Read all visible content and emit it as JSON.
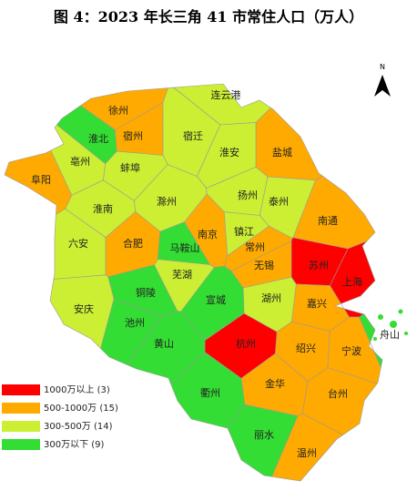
{
  "title": "图 4：2023 年长三角 41 市常住人口（万人）",
  "north": "N",
  "legend": [
    {
      "label": "1000万以上 (3)",
      "color": "#ff0000",
      "cities": [
        "苏州",
        "上海",
        "杭州"
      ]
    },
    {
      "label": "500-1000万 (15)",
      "color": "#ffaa00",
      "cities": [
        "徐州",
        "宿州",
        "盐城",
        "阜阳",
        "合肥",
        "南京",
        "常州",
        "无锡",
        "南通",
        "嘉兴",
        "绍兴",
        "宁波",
        "金华",
        "台州",
        "温州"
      ]
    },
    {
      "label": "300-500万 (14)",
      "color": "#ccee33",
      "cities": [
        "连云港",
        "宿迁",
        "淮安",
        "亳州",
        "蚌埠",
        "淮南",
        "滁州",
        "扬州",
        "泰州",
        "镇江",
        "六安",
        "安庆",
        "芜湖",
        "湖州"
      ]
    },
    {
      "label": "300万以下 (9)",
      "color": "#33dd33",
      "cities": [
        "淮北",
        "铜陵",
        "马鞍山",
        "池州",
        "黄山",
        "宣城",
        "衢州",
        "丽水",
        "舟山"
      ]
    }
  ]
}
